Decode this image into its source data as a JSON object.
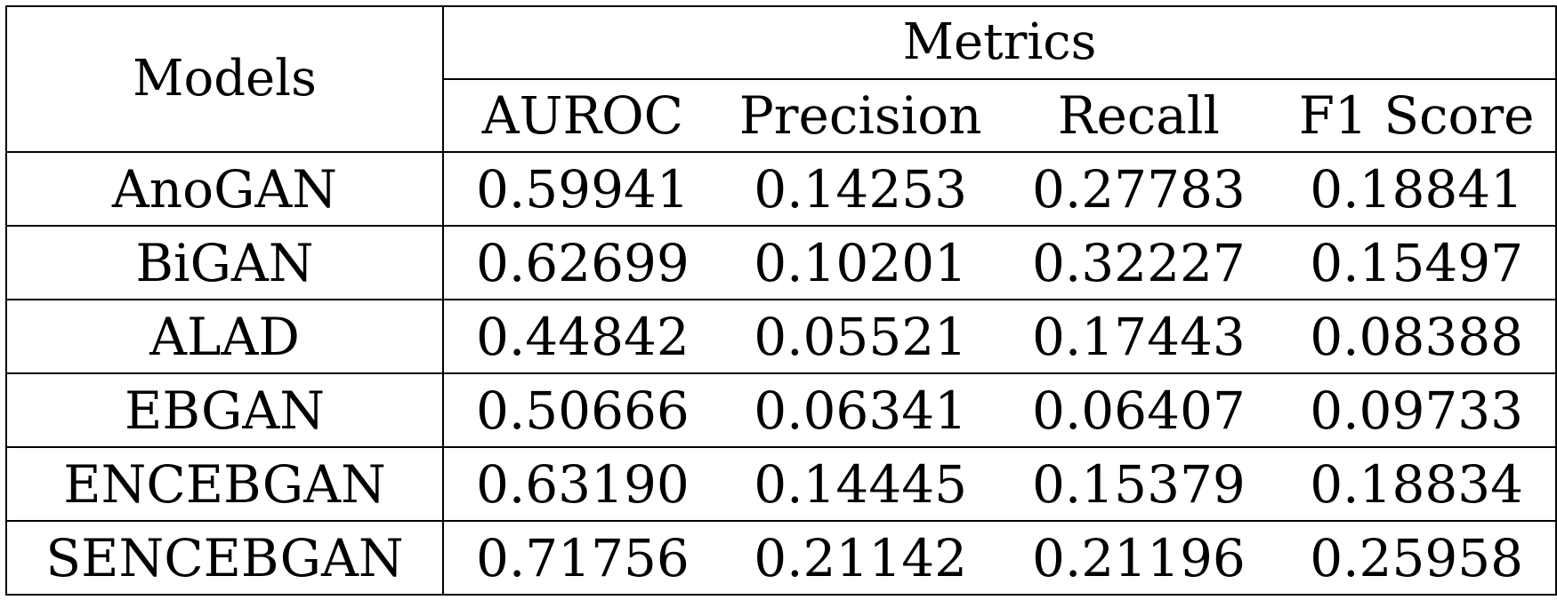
{
  "table": {
    "models_header": "Models",
    "metrics_header": "Metrics",
    "metric_columns": [
      "AUROC",
      "Precision",
      "Recall",
      "F1 Score"
    ],
    "rows": [
      {
        "model": "AnoGAN",
        "values": [
          "0.59941",
          "0.14253",
          "0.27783",
          "0.18841"
        ]
      },
      {
        "model": "BiGAN",
        "values": [
          "0.62699",
          "0.10201",
          "0.32227",
          "0.15497"
        ]
      },
      {
        "model": "ALAD",
        "values": [
          "0.44842",
          "0.05521",
          "0.17443",
          "0.08388"
        ]
      },
      {
        "model": "EBGAN",
        "values": [
          "0.50666",
          "0.06341",
          "0.06407",
          "0.09733"
        ]
      },
      {
        "model": "ENCEBGAN",
        "values": [
          "0.63190",
          "0.14445",
          "0.15379",
          "0.18834"
        ]
      },
      {
        "model": "SENCEBGAN",
        "values": [
          "0.71756",
          "0.21142",
          "0.21196",
          "0.25958"
        ]
      }
    ]
  }
}
